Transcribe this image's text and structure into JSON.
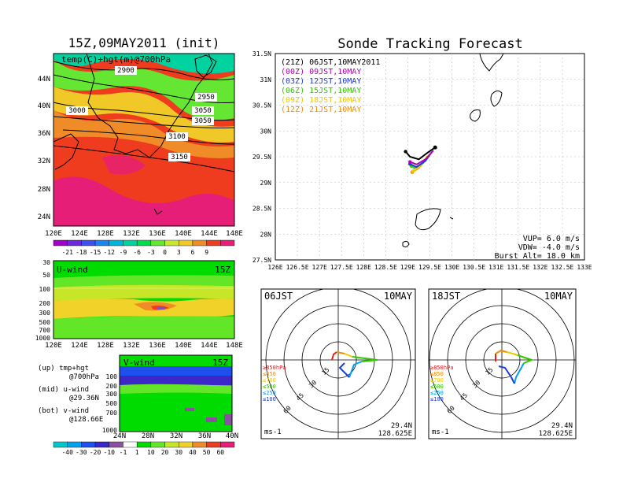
{
  "left": {
    "title": "15Z,09MAY2011 (init)",
    "map_label": "temp(C)+hgt(m)@700hPa",
    "lon_ticks": [
      "120E",
      "124E",
      "128E",
      "132E",
      "136E",
      "140E",
      "144E",
      "148E"
    ],
    "lat_ticks": [
      "44N",
      "40N",
      "36N",
      "32N",
      "28N",
      "24N"
    ],
    "contours": [
      "2900",
      "2950",
      "3000",
      "3050",
      "3050",
      "3100",
      "3150"
    ],
    "temp_bar": [
      "-21",
      "-18",
      "-15",
      "-12",
      "-9",
      "-6",
      "-3",
      "0",
      "3",
      "6",
      "9"
    ],
    "temp_colors": [
      "#a000c8",
      "#6e28dc",
      "#3c50f0",
      "#1e82f0",
      "#00b4dc",
      "#00d2a0",
      "#00dc50",
      "#64e632",
      "#c8e632",
      "#f0c828",
      "#f08c28",
      "#f03c1e",
      "#e61e78"
    ],
    "uwind": {
      "label": "U-wind",
      "time": "15Z",
      "p_ticks": [
        "30",
        "50",
        "100",
        "200",
        "300",
        "500",
        "700",
        "1000"
      ],
      "lon_ticks": [
        "120E",
        "124E",
        "128E",
        "132E",
        "136E",
        "140E",
        "144E",
        "148E"
      ]
    },
    "vwind": {
      "label": "V-wind",
      "time": "15Z",
      "p_ticks": [
        "100",
        "200",
        "300",
        "500",
        "700",
        "1000"
      ],
      "lat_ticks": [
        "24N",
        "28N",
        "32N",
        "36N",
        "40N"
      ]
    },
    "notes": [
      [
        "(up) tmp+hgt",
        "@700hPa"
      ],
      [
        "(mid) u-wind",
        "@29.36N"
      ],
      [
        "(bot) v-wind",
        "@128.66E"
      ]
    ],
    "wind_bar": [
      "-40",
      "-30",
      "-20",
      "-10",
      "-1",
      "1",
      "10",
      "20",
      "30",
      "40",
      "50",
      "60"
    ],
    "wind_colors": [
      "#00c8c8",
      "#00a0f0",
      "#1e50f0",
      "#3c28c8",
      "#8c50a0",
      "#ffffff",
      "#00dc00",
      "#64e628",
      "#c8e628",
      "#f0d228",
      "#f08c28",
      "#f03c1e",
      "#e61e78"
    ]
  },
  "right": {
    "title": "Sonde Tracking Forecast",
    "legend": [
      {
        "text": "(21Z) 06JST,10MAY2011",
        "color": "#000000"
      },
      {
        "text": "(00Z) 09JST,10MAY",
        "color": "#b400b4"
      },
      {
        "text": "(03Z) 12JST,10MAY",
        "color": "#1e3cdc"
      },
      {
        "text": "(06Z) 15JST,10MAY",
        "color": "#32c800"
      },
      {
        "text": "(09Z) 18JST,10MAY",
        "color": "#f0c800"
      },
      {
        "text": "(12Z) 21JST,10MAY",
        "color": "#f08c00"
      }
    ],
    "lat_ticks": [
      "31.5N",
      "31N",
      "30.5N",
      "30N",
      "29.5N",
      "29N",
      "28.5N",
      "28N",
      "27.5N"
    ],
    "lon_ticks": [
      "126E",
      "126.5E",
      "127E",
      "127.5E",
      "128E",
      "128.5E",
      "129E",
      "129.5E",
      "130E",
      "130.5E",
      "131E",
      "131.5E",
      "132E",
      "132.5E",
      "133E"
    ],
    "params": [
      "VUP= 6.0 m/s",
      "VDW= -4.0 m/s",
      "Burst Alt= 18.0 km"
    ]
  },
  "polars": [
    {
      "time": "06JST",
      "date": "10MAY",
      "lat": "29.4N",
      "lon": "128.625E",
      "unit": "ms-1",
      "rings": [
        "15",
        "30",
        "45",
        "60"
      ],
      "pressures": [
        "≥850hPa",
        "≤850",
        "≤700",
        "≤500",
        "≤250",
        "≤100"
      ]
    },
    {
      "time": "18JST",
      "date": "10MAY",
      "lat": "29.4N",
      "lon": "128.625E",
      "unit": "ms-1",
      "rings": [
        "15",
        "30",
        "45",
        "60"
      ],
      "pressures": [
        "≥850hPa",
        "≤850",
        "≤700",
        "≤500",
        "≤250",
        "≤100"
      ]
    }
  ],
  "chart_data": [
    {
      "type": "heatmap",
      "title": "15Z,09MAY2011 (init)",
      "label": "temp(C)+hgt(m)@700hPa",
      "xlim": [
        "120E",
        "150E"
      ],
      "ylim": [
        "22N",
        "47N"
      ],
      "contour_levels": [
        2900,
        2950,
        3000,
        3050,
        3100,
        3150
      ]
    },
    {
      "type": "line",
      "title": "Sonde Tracking Forecast",
      "xlim": [
        126,
        133
      ],
      "ylim": [
        27.5,
        31.5
      ],
      "series": [
        {
          "name": "(21Z) 06JST,10MAY2011",
          "values": [
            [
              129.62,
              29.68
            ],
            [
              129.45,
              29.58
            ],
            [
              129.25,
              29.45
            ],
            [
              129.05,
              29.5
            ],
            [
              128.95,
              29.6
            ]
          ]
        },
        {
          "name": "(00Z) 09JST,10MAY",
          "values": [
            [
              129.58,
              29.62
            ],
            [
              129.4,
              29.45
            ],
            [
              129.2,
              29.35
            ],
            [
              129.05,
              29.4
            ]
          ]
        },
        {
          "name": "(03Z) 12JST,10MAY",
          "values": [
            [
              129.55,
              29.6
            ],
            [
              129.4,
              29.42
            ],
            [
              129.2,
              29.3
            ],
            [
              129.05,
              29.36
            ]
          ]
        },
        {
          "name": "(06Z) 15JST,10MAY",
          "values": [
            [
              129.5,
              29.55
            ],
            [
              129.35,
              29.38
            ],
            [
              129.15,
              29.28
            ],
            [
              129.08,
              29.32
            ]
          ]
        },
        {
          "name": "(09Z) 18JST,10MAY",
          "values": [
            [
              129.45,
              29.52
            ],
            [
              129.3,
              29.32
            ],
            [
              129.12,
              29.22
            ]
          ]
        },
        {
          "name": "(12Z) 21JST,10MAY",
          "values": [
            [
              129.42,
              29.48
            ],
            [
              129.25,
              29.28
            ],
            [
              129.1,
              29.2
            ]
          ]
        }
      ]
    },
    {
      "type": "line",
      "title": "06JST 10MAY hodograph",
      "unit": "ms-1",
      "rings": [
        15,
        30,
        45,
        60
      ]
    },
    {
      "type": "line",
      "title": "18JST 10MAY hodograph",
      "unit": "ms-1",
      "rings": [
        15,
        30,
        45,
        60
      ]
    }
  ]
}
